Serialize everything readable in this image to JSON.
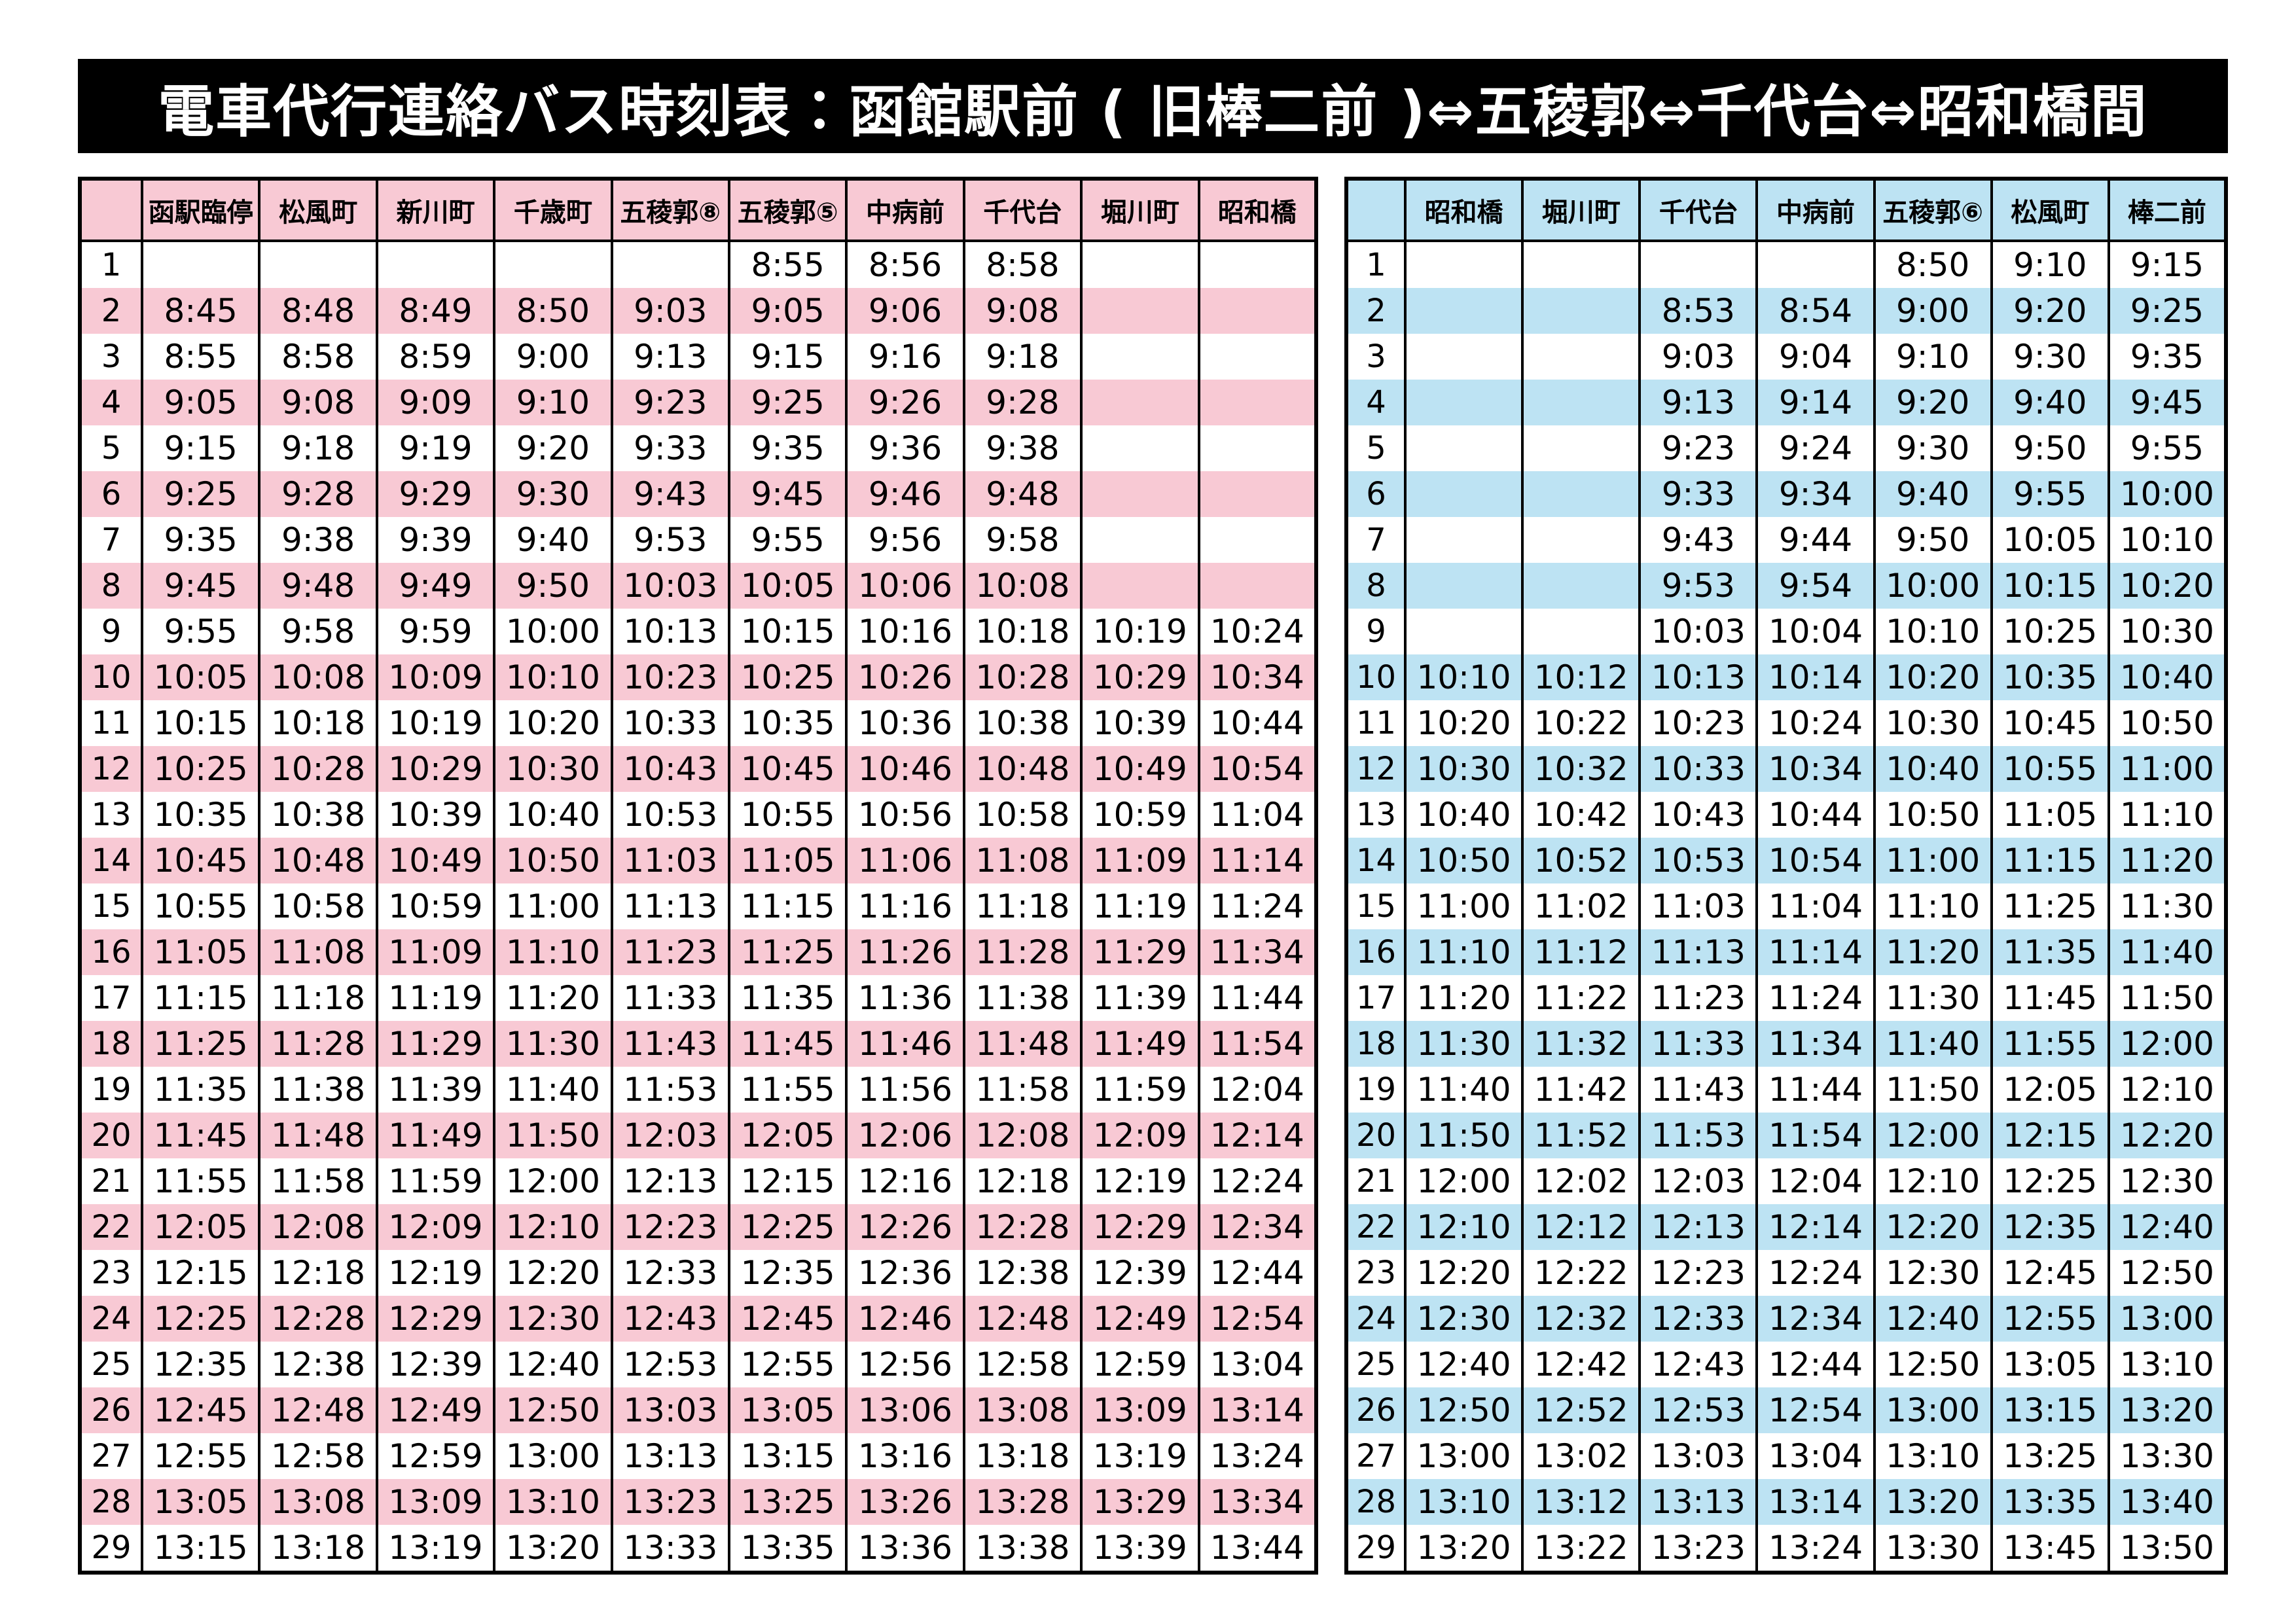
{
  "header": {
    "title": "電車代行連絡バス時刻表：函館駅前 ( 旧棒二前 )⇔五稜郭⇔千代台⇔昭和橋間"
  },
  "tables": [
    {
      "headers": [
        "函駅臨停",
        "松風町",
        "新川町",
        "千歳町",
        "五稜郭⑧",
        "五稜郭⑤",
        "中病前",
        "千代台",
        "堀川町",
        "昭和橋"
      ],
      "rows": [
        [
          1,
          null,
          null,
          null,
          null,
          null,
          "8:55",
          "8:56",
          "8:58",
          null,
          null
        ],
        [
          2,
          "8:45",
          "8:48",
          "8:49",
          "8:50",
          "9:03",
          "9:05",
          "9:06",
          "9:08",
          null,
          null
        ],
        [
          3,
          "8:55",
          "8:58",
          "8:59",
          "9:00",
          "9:13",
          "9:15",
          "9:16",
          "9:18",
          null,
          null
        ],
        [
          4,
          "9:05",
          "9:08",
          "9:09",
          "9:10",
          "9:23",
          "9:25",
          "9:26",
          "9:28",
          null,
          null
        ],
        [
          5,
          "9:15",
          "9:18",
          "9:19",
          "9:20",
          "9:33",
          "9:35",
          "9:36",
          "9:38",
          null,
          null
        ],
        [
          6,
          "9:25",
          "9:28",
          "9:29",
          "9:30",
          "9:43",
          "9:45",
          "9:46",
          "9:48",
          null,
          null
        ],
        [
          7,
          "9:35",
          "9:38",
          "9:39",
          "9:40",
          "9:53",
          "9:55",
          "9:56",
          "9:58",
          null,
          null
        ],
        [
          8,
          "9:45",
          "9:48",
          "9:49",
          "9:50",
          "10:03",
          "10:05",
          "10:06",
          "10:08",
          null,
          null
        ],
        [
          9,
          "9:55",
          "9:58",
          "9:59",
          "10:00",
          "10:13",
          "10:15",
          "10:16",
          "10:18",
          "10:19",
          "10:24"
        ],
        [
          10,
          "10:05",
          "10:08",
          "10:09",
          "10:10",
          "10:23",
          "10:25",
          "10:26",
          "10:28",
          "10:29",
          "10:34"
        ],
        [
          11,
          "10:15",
          "10:18",
          "10:19",
          "10:20",
          "10:33",
          "10:35",
          "10:36",
          "10:38",
          "10:39",
          "10:44"
        ],
        [
          12,
          "10:25",
          "10:28",
          "10:29",
          "10:30",
          "10:43",
          "10:45",
          "10:46",
          "10:48",
          "10:49",
          "10:54"
        ],
        [
          13,
          "10:35",
          "10:38",
          "10:39",
          "10:40",
          "10:53",
          "10:55",
          "10:56",
          "10:58",
          "10:59",
          "11:04"
        ],
        [
          14,
          "10:45",
          "10:48",
          "10:49",
          "10:50",
          "11:03",
          "11:05",
          "11:06",
          "11:08",
          "11:09",
          "11:14"
        ],
        [
          15,
          "10:55",
          "10:58",
          "10:59",
          "11:00",
          "11:13",
          "11:15",
          "11:16",
          "11:18",
          "11:19",
          "11:24"
        ],
        [
          16,
          "11:05",
          "11:08",
          "11:09",
          "11:10",
          "11:23",
          "11:25",
          "11:26",
          "11:28",
          "11:29",
          "11:34"
        ],
        [
          17,
          "11:15",
          "11:18",
          "11:19",
          "11:20",
          "11:33",
          "11:35",
          "11:36",
          "11:38",
          "11:39",
          "11:44"
        ],
        [
          18,
          "11:25",
          "11:28",
          "11:29",
          "11:30",
          "11:43",
          "11:45",
          "11:46",
          "11:48",
          "11:49",
          "11:54"
        ],
        [
          19,
          "11:35",
          "11:38",
          "11:39",
          "11:40",
          "11:53",
          "11:55",
          "11:56",
          "11:58",
          "11:59",
          "12:04"
        ],
        [
          20,
          "11:45",
          "11:48",
          "11:49",
          "11:50",
          "12:03",
          "12:05",
          "12:06",
          "12:08",
          "12:09",
          "12:14"
        ],
        [
          21,
          "11:55",
          "11:58",
          "11:59",
          "12:00",
          "12:13",
          "12:15",
          "12:16",
          "12:18",
          "12:19",
          "12:24"
        ],
        [
          22,
          "12:05",
          "12:08",
          "12:09",
          "12:10",
          "12:23",
          "12:25",
          "12:26",
          "12:28",
          "12:29",
          "12:34"
        ],
        [
          23,
          "12:15",
          "12:18",
          "12:19",
          "12:20",
          "12:33",
          "12:35",
          "12:36",
          "12:38",
          "12:39",
          "12:44"
        ],
        [
          24,
          "12:25",
          "12:28",
          "12:29",
          "12:30",
          "12:43",
          "12:45",
          "12:46",
          "12:48",
          "12:49",
          "12:54"
        ],
        [
          25,
          "12:35",
          "12:38",
          "12:39",
          "12:40",
          "12:53",
          "12:55",
          "12:56",
          "12:58",
          "12:59",
          "13:04"
        ],
        [
          26,
          "12:45",
          "12:48",
          "12:49",
          "12:50",
          "13:03",
          "13:05",
          "13:06",
          "13:08",
          "13:09",
          "13:14"
        ],
        [
          27,
          "12:55",
          "12:58",
          "12:59",
          "13:00",
          "13:13",
          "13:15",
          "13:16",
          "13:18",
          "13:19",
          "13:24"
        ],
        [
          28,
          "13:05",
          "13:08",
          "13:09",
          "13:10",
          "13:23",
          "13:25",
          "13:26",
          "13:28",
          "13:29",
          "13:34"
        ],
        [
          29,
          "13:15",
          "13:18",
          "13:19",
          "13:20",
          "13:33",
          "13:35",
          "13:36",
          "13:38",
          "13:39",
          "13:44"
        ]
      ]
    },
    {
      "headers": [
        "昭和橋",
        "堀川町",
        "千代台",
        "中病前",
        "五稜郭⑥",
        "松風町",
        "棒二前"
      ],
      "rows": [
        [
          1,
          null,
          null,
          null,
          null,
          "8:50",
          "9:10",
          "9:15"
        ],
        [
          2,
          null,
          null,
          "8:53",
          "8:54",
          "9:00",
          "9:20",
          "9:25"
        ],
        [
          3,
          null,
          null,
          "9:03",
          "9:04",
          "9:10",
          "9:30",
          "9:35"
        ],
        [
          4,
          null,
          null,
          "9:13",
          "9:14",
          "9:20",
          "9:40",
          "9:45"
        ],
        [
          5,
          null,
          null,
          "9:23",
          "9:24",
          "9:30",
          "9:50",
          "9:55"
        ],
        [
          6,
          null,
          null,
          "9:33",
          "9:34",
          "9:40",
          "9:55",
          "10:00"
        ],
        [
          7,
          null,
          null,
          "9:43",
          "9:44",
          "9:50",
          "10:05",
          "10:10"
        ],
        [
          8,
          null,
          null,
          "9:53",
          "9:54",
          "10:00",
          "10:15",
          "10:20"
        ],
        [
          9,
          null,
          null,
          "10:03",
          "10:04",
          "10:10",
          "10:25",
          "10:30"
        ],
        [
          10,
          "10:10",
          "10:12",
          "10:13",
          "10:14",
          "10:20",
          "10:35",
          "10:40"
        ],
        [
          11,
          "10:20",
          "10:22",
          "10:23",
          "10:24",
          "10:30",
          "10:45",
          "10:50"
        ],
        [
          12,
          "10:30",
          "10:32",
          "10:33",
          "10:34",
          "10:40",
          "10:55",
          "11:00"
        ],
        [
          13,
          "10:40",
          "10:42",
          "10:43",
          "10:44",
          "10:50",
          "11:05",
          "11:10"
        ],
        [
          14,
          "10:50",
          "10:52",
          "10:53",
          "10:54",
          "11:00",
          "11:15",
          "11:20"
        ],
        [
          15,
          "11:00",
          "11:02",
          "11:03",
          "11:04",
          "11:10",
          "11:25",
          "11:30"
        ],
        [
          16,
          "11:10",
          "11:12",
          "11:13",
          "11:14",
          "11:20",
          "11:35",
          "11:40"
        ],
        [
          17,
          "11:20",
          "11:22",
          "11:23",
          "11:24",
          "11:30",
          "11:45",
          "11:50"
        ],
        [
          18,
          "11:30",
          "11:32",
          "11:33",
          "11:34",
          "11:40",
          "11:55",
          "12:00"
        ],
        [
          19,
          "11:40",
          "11:42",
          "11:43",
          "11:44",
          "11:50",
          "12:05",
          "12:10"
        ],
        [
          20,
          "11:50",
          "11:52",
          "11:53",
          "11:54",
          "12:00",
          "12:15",
          "12:20"
        ],
        [
          21,
          "12:00",
          "12:02",
          "12:03",
          "12:04",
          "12:10",
          "12:25",
          "12:30"
        ],
        [
          22,
          "12:10",
          "12:12",
          "12:13",
          "12:14",
          "12:20",
          "12:35",
          "12:40"
        ],
        [
          23,
          "12:20",
          "12:22",
          "12:23",
          "12:24",
          "12:30",
          "12:45",
          "12:50"
        ],
        [
          24,
          "12:30",
          "12:32",
          "12:33",
          "12:34",
          "12:40",
          "12:55",
          "13:00"
        ],
        [
          25,
          "12:40",
          "12:42",
          "12:43",
          "12:44",
          "12:50",
          "13:05",
          "13:10"
        ],
        [
          26,
          "12:50",
          "12:52",
          "12:53",
          "12:54",
          "13:00",
          "13:15",
          "13:20"
        ],
        [
          27,
          "13:00",
          "13:02",
          "13:03",
          "13:04",
          "13:10",
          "13:25",
          "13:30"
        ],
        [
          28,
          "13:10",
          "13:12",
          "13:13",
          "13:14",
          "13:20",
          "13:35",
          "13:40"
        ],
        [
          29,
          "13:20",
          "13:22",
          "13:23",
          "13:24",
          "13:30",
          "13:45",
          "13:50"
        ]
      ]
    }
  ]
}
